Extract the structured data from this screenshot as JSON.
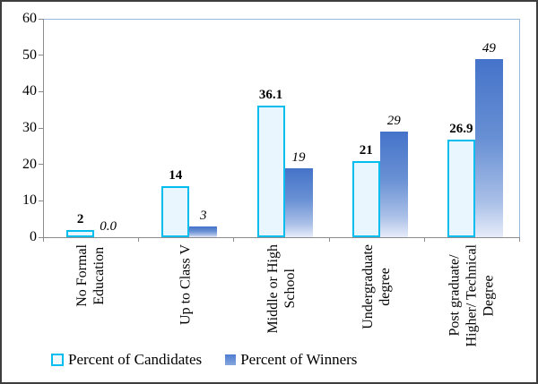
{
  "figure": {
    "background": "#ffffff",
    "border_color": "#3d3d3d"
  },
  "chart_data": {
    "type": "bar",
    "title": "",
    "xlabel": "",
    "ylabel": "",
    "categories": [
      "No Formal Education",
      "Up to Class V",
      "Middle or High School",
      "Undergraduate degree",
      "Post graduate/ Higher/ Technical Degree"
    ],
    "category_label_lines": [
      [
        "No Formal",
        "Education"
      ],
      [
        "Up to Class V"
      ],
      [
        "Middle or High",
        "School"
      ],
      [
        "Undergraduate",
        "degree"
      ],
      [
        "Post graduate/",
        "Higher/ Technical",
        "Degree"
      ]
    ],
    "series": [
      {
        "name": "Percent of Candidates",
        "values": [
          2,
          14,
          36.1,
          21,
          26.9
        ],
        "data_labels": [
          "2",
          "14",
          "36.1",
          "21",
          "26.9"
        ],
        "label_style": "bold",
        "fill": "#eaf6fd",
        "border": "#00bdf0"
      },
      {
        "name": "Percent of Winners",
        "values": [
          0.0,
          3,
          19,
          29,
          49
        ],
        "data_labels": [
          "0.0",
          "3",
          "19",
          "29",
          "49"
        ],
        "label_style": "italic",
        "gradient_top": "#4573c9",
        "gradient_bottom": "#e6ecf9"
      }
    ],
    "ylim": [
      0,
      60
    ],
    "yticks": [
      0,
      10,
      20,
      30,
      40,
      50,
      60
    ],
    "grid": false,
    "legend_position": "bottom",
    "plot_border_color": "#9ab8dc",
    "axis_color": "#8c8c8c"
  }
}
